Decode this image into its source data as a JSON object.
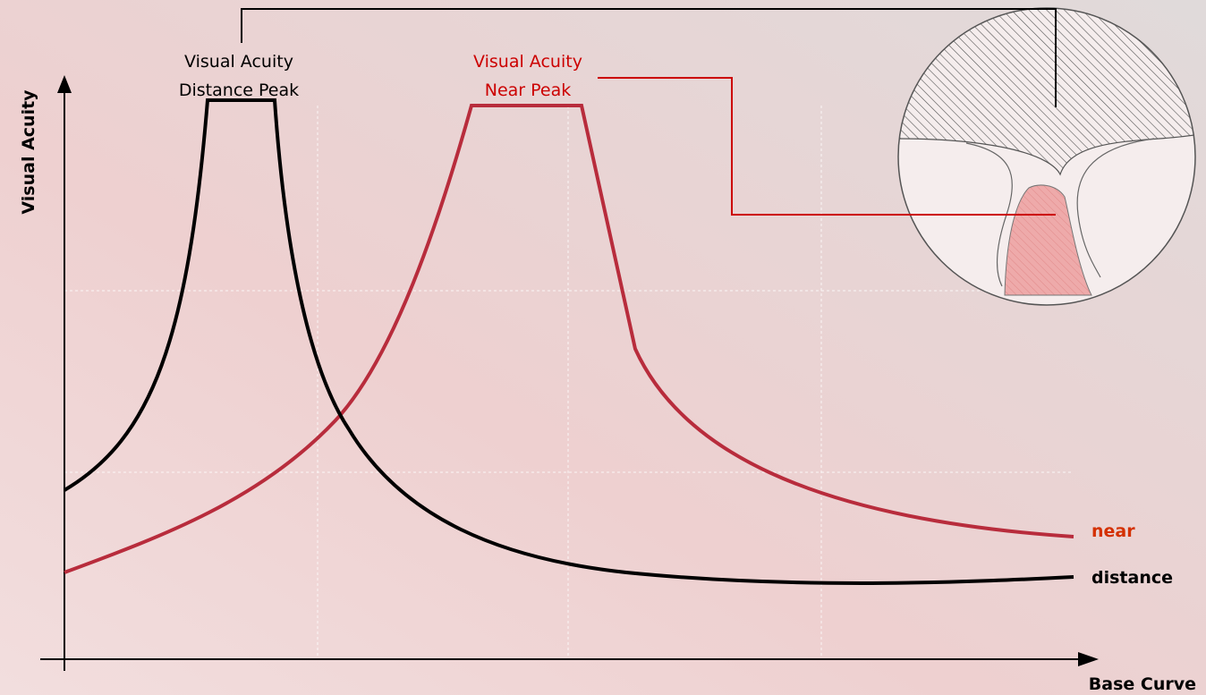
{
  "axes": {
    "y_label": "Visual Acuity",
    "x_label": "Base Curve"
  },
  "annotations": [
    {
      "lines": [
        "Visual Acuity",
        "Distance Peak"
      ]
    },
    {
      "lines": [
        "Visual Acuity",
        "Near Peak"
      ]
    }
  ],
  "curves": [
    {
      "label": "near"
    },
    {
      "label": "distance"
    }
  ]
}
